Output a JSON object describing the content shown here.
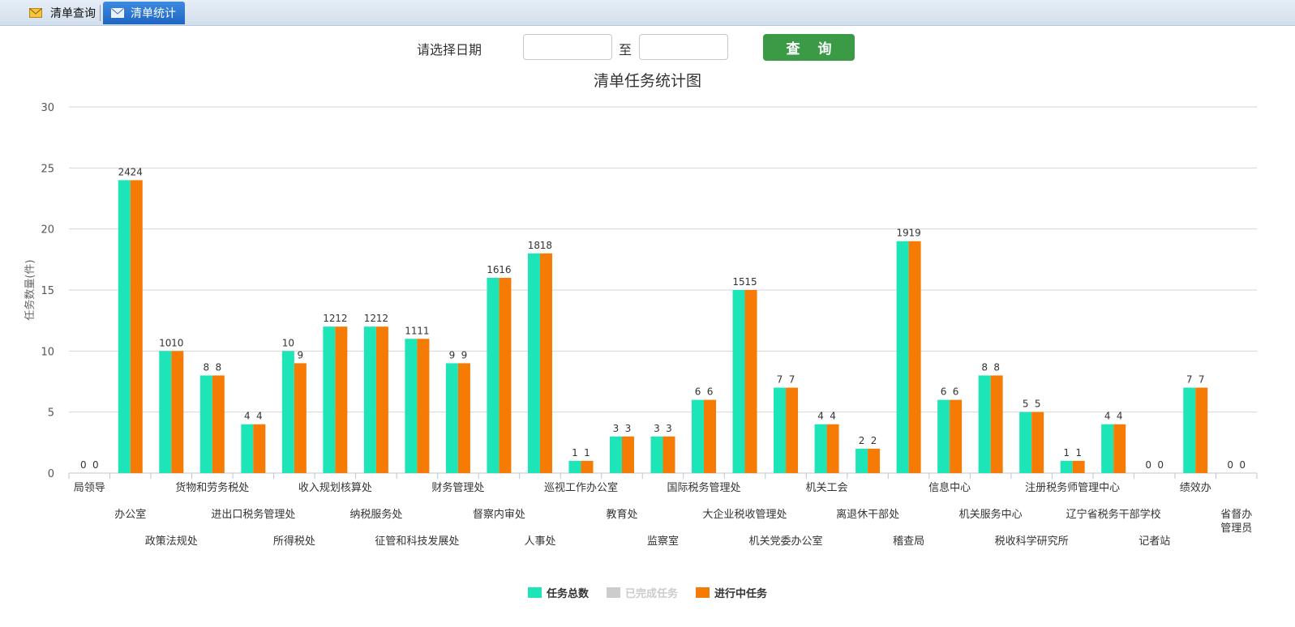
{
  "tabs": [
    {
      "label": "清单查询",
      "icon": "mail-icon",
      "active": false
    },
    {
      "label": "清单统计",
      "icon": "mail-icon",
      "active": true
    }
  ],
  "filter": {
    "label": "请选择日期",
    "to_label": "至",
    "start_value": "",
    "end_value": "",
    "button_label": "查 询"
  },
  "colors": {
    "series_total": "#1de5b8",
    "series_done": "#cccccc",
    "series_progress": "#f57b04",
    "button": "#3a9a46",
    "tab_active": "#2a74cf"
  },
  "chart_data": {
    "type": "bar",
    "title": "清单任务统计图",
    "xlabel": "",
    "ylabel": "任务数量(件)",
    "ylim": [
      0,
      30
    ],
    "yticks": [
      0,
      5,
      10,
      15,
      20,
      25,
      30
    ],
    "grid": true,
    "legend_position": "bottom",
    "categories": [
      "局领导",
      "办公室",
      "政策法规处",
      "货物和劳务税处",
      "进出口税务管理处",
      "所得税处",
      "收入规划核算处",
      "纳税服务处",
      "征管和科技发展处",
      "财务管理处",
      "督察内审处",
      "人事处",
      "巡视工作办公室",
      "教育处",
      "监察室",
      "国际税务管理处",
      "大企业税收管理处",
      "机关党委办公室",
      "机关工会",
      "离退休干部处",
      "稽查局",
      "信息中心",
      "机关服务中心",
      "税收科学研究所",
      "注册税务师管理中心",
      "辽宁省税务干部学校",
      "记者站",
      "绩效办",
      "省督办管理员"
    ],
    "series": [
      {
        "name": "任务总数",
        "values": [
          0,
          24,
          10,
          8,
          4,
          10,
          12,
          12,
          11,
          9,
          16,
          18,
          1,
          3,
          3,
          6,
          15,
          7,
          4,
          2,
          19,
          6,
          8,
          5,
          1,
          4,
          0,
          7,
          0
        ],
        "enabled": true
      },
      {
        "name": "已完成任务",
        "values": [
          0,
          0,
          0,
          0,
          0,
          0,
          0,
          0,
          0,
          0,
          0,
          0,
          0,
          0,
          0,
          0,
          0,
          0,
          0,
          0,
          0,
          0,
          0,
          0,
          0,
          0,
          0,
          0,
          0
        ],
        "enabled": false
      },
      {
        "name": "进行中任务",
        "values": [
          0,
          24,
          10,
          8,
          4,
          9,
          12,
          12,
          11,
          9,
          16,
          18,
          1,
          3,
          3,
          6,
          15,
          7,
          4,
          2,
          19,
          6,
          8,
          5,
          1,
          4,
          0,
          7,
          0
        ],
        "enabled": true
      }
    ]
  }
}
